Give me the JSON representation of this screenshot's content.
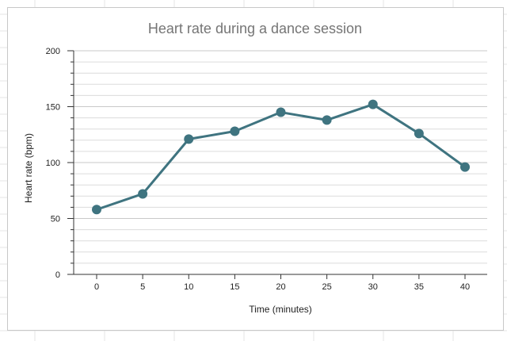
{
  "chart_data": {
    "type": "line",
    "title": "Heart rate during a dance session",
    "xlabel": "Time (minutes)",
    "ylabel": "Heart rate (bpm)",
    "x": [
      0,
      5,
      10,
      15,
      20,
      25,
      30,
      35,
      40
    ],
    "series": [
      {
        "name": "Heart rate",
        "values": [
          58,
          72,
          121,
          128,
          145,
          138,
          152,
          126,
          96
        ]
      }
    ],
    "xticks": [
      0,
      5,
      10,
      15,
      20,
      25,
      30,
      35,
      40
    ],
    "yticks": [
      0,
      50,
      100,
      150,
      200
    ],
    "ylim": [
      0,
      200
    ],
    "grid": true,
    "legend": "none",
    "line_color": "#3f7480",
    "grid_color": "#dcdcdc"
  }
}
